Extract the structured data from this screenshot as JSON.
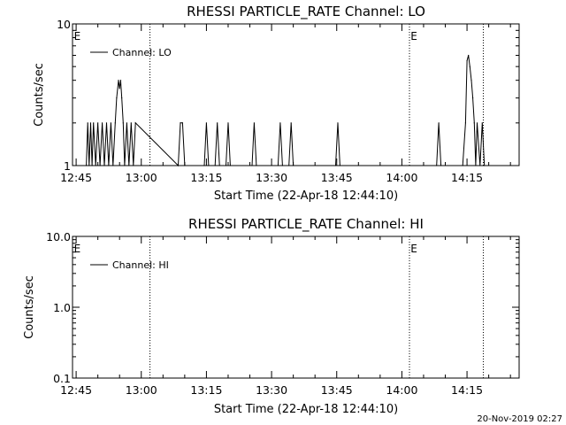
{
  "timestamp": "20-Nov-2019 02:27",
  "chart_data": [
    {
      "type": "line",
      "title": "RHESSI PARTICLE_RATE Channel: LO",
      "xlabel": "Start Time (22-Apr-18 12:44:10)",
      "ylabel": "Counts/sec",
      "y_scale": "log",
      "ylim": [
        1,
        10
      ],
      "xlim": [
        "12:44:10",
        "14:27:00"
      ],
      "x_ticks": [
        "12:45",
        "13:00",
        "13:15",
        "13:30",
        "13:45",
        "14:00",
        "14:15"
      ],
      "y_ticks": [
        "1",
        "10"
      ],
      "legend": "Channel: LO",
      "legend_position": "top-left",
      "event_lines": [
        "13:02:00",
        "14:01:45",
        "14:18:45"
      ],
      "event_labels": [
        {
          "text": "E",
          "x": "12:44:30"
        },
        {
          "text": "E",
          "x": "14:02:00"
        }
      ],
      "series": [
        {
          "name": "Channel: LO",
          "x": [
            "12:47:20",
            "12:47:40",
            "12:48:00",
            "12:48:20",
            "12:48:40",
            "12:49:00",
            "12:49:30",
            "12:50:00",
            "12:50:30",
            "12:51:00",
            "12:51:30",
            "12:52:00",
            "12:52:30",
            "12:53:00",
            "12:53:30",
            "12:54:00",
            "12:54:20",
            "12:54:45",
            "12:55:00",
            "12:55:15",
            "12:55:30",
            "12:55:50",
            "12:56:10",
            "12:56:40",
            "12:57:10",
            "12:57:40",
            "12:58:10",
            "12:58:40",
            "13:08:30",
            "13:09:00",
            "13:09:30",
            "13:10:00",
            "13:14:30",
            "13:15:00",
            "13:15:30",
            "13:17:00",
            "13:17:30",
            "13:18:00",
            "13:19:30",
            "13:20:00",
            "13:20:30",
            "13:25:30",
            "13:26:00",
            "13:26:30",
            "13:31:30",
            "13:32:00",
            "13:32:30",
            "13:34:00",
            "13:34:30",
            "13:35:00",
            "13:44:45",
            "13:45:15",
            "13:45:45",
            "14:08:00",
            "14:08:30",
            "14:09:00",
            "14:14:00",
            "14:14:40",
            "14:15:00",
            "14:15:20",
            "14:15:40",
            "14:16:00",
            "14:16:20",
            "14:16:40",
            "14:17:00",
            "14:17:20",
            "14:18:00",
            "14:18:30",
            "14:19:00"
          ],
          "values": [
            1,
            2,
            1,
            2,
            1,
            2,
            1,
            2,
            1,
            2,
            1,
            2,
            1,
            2,
            1,
            2,
            3,
            4,
            3.5,
            4,
            3,
            2,
            1,
            2,
            1,
            2,
            1,
            2,
            1,
            2,
            2,
            1,
            1,
            2,
            1,
            1,
            2,
            1,
            1,
            2,
            1,
            1,
            2,
            1,
            1,
            2,
            1,
            1,
            2,
            1,
            1,
            2,
            1,
            1,
            2,
            1,
            1,
            2,
            5.5,
            6,
            5,
            4,
            3,
            2,
            1,
            2,
            1,
            2,
            1
          ]
        }
      ]
    },
    {
      "type": "line",
      "title": "RHESSI PARTICLE_RATE Channel: HI",
      "xlabel": "Start Time (22-Apr-18 12:44:10)",
      "ylabel": "Counts/sec",
      "y_scale": "log",
      "ylim": [
        0.1,
        10
      ],
      "xlim": [
        "12:44:10",
        "14:27:00"
      ],
      "x_ticks": [
        "12:45",
        "13:00",
        "13:15",
        "13:30",
        "13:45",
        "14:00",
        "14:15"
      ],
      "y_ticks": [
        "0.1",
        "1.0",
        "10.0"
      ],
      "legend": "Channel: HI",
      "legend_position": "top-left",
      "event_lines": [
        "13:02:00",
        "14:01:45",
        "14:18:45"
      ],
      "event_labels": [
        {
          "text": "E",
          "x": "12:44:30"
        },
        {
          "text": "E",
          "x": "14:02:00"
        }
      ],
      "series": [
        {
          "name": "Channel: HI",
          "x": [],
          "values": []
        }
      ]
    }
  ]
}
